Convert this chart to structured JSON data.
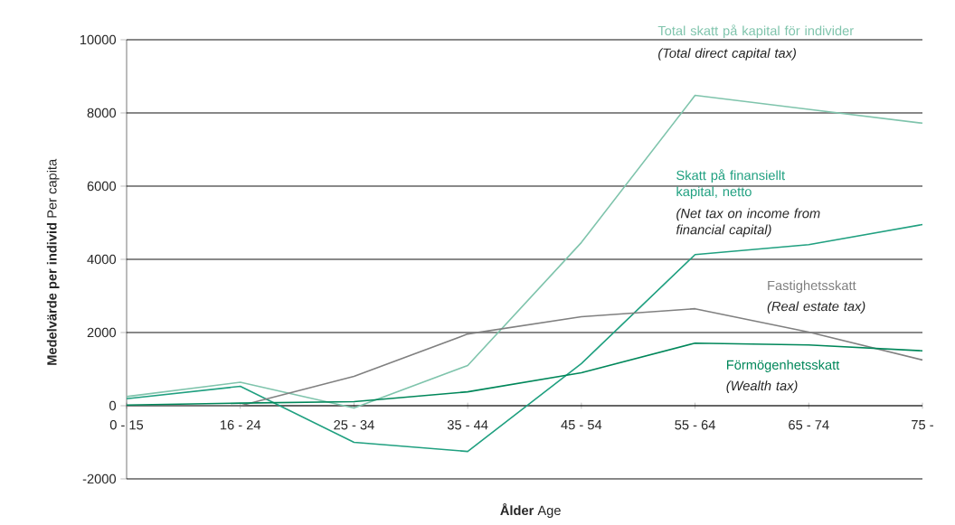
{
  "chart_data": {
    "type": "line",
    "xlabel": "**Ålder** Age",
    "ylabel": "**Medelvärde per individ** Per capita",
    "categories": [
      "0 - 15",
      "16 - 24",
      "25 - 34",
      "35 - 44",
      "45 - 54",
      "55 - 64",
      "65 - 74",
      "75 -"
    ],
    "series": [
      {
        "name": "Total skatt på kapital för individer",
        "color": "#7fc4ac",
        "values": [
          250,
          640,
          -60,
          1100,
          4460,
          8480,
          8100,
          7720
        ]
      },
      {
        "name": "Skatt på finansiellt kapital, netto",
        "color": "#20a080",
        "values": [
          190,
          530,
          -1000,
          -1250,
          1150,
          4130,
          4400,
          4950
        ]
      },
      {
        "name": "Fastighetsskatt",
        "color": "#808080",
        "values": [
          0,
          0,
          800,
          1960,
          2430,
          2650,
          2010,
          1250
        ]
      },
      {
        "name": "Förmögenhetsskatt",
        "color": "#00875a",
        "values": [
          20,
          70,
          110,
          380,
          900,
          1710,
          1660,
          1500
        ]
      }
    ],
    "annotations": [
      "(Total direct capital tax)",
      "(Net tax on income from financial capital)",
      "(Real estate tax)",
      "(Wealth tax)"
    ],
    "ylim": [
      -2000,
      10000
    ],
    "yticks": [
      -2000,
      0,
      2000,
      4000,
      6000,
      8000,
      10000
    ],
    "grid": "y"
  }
}
